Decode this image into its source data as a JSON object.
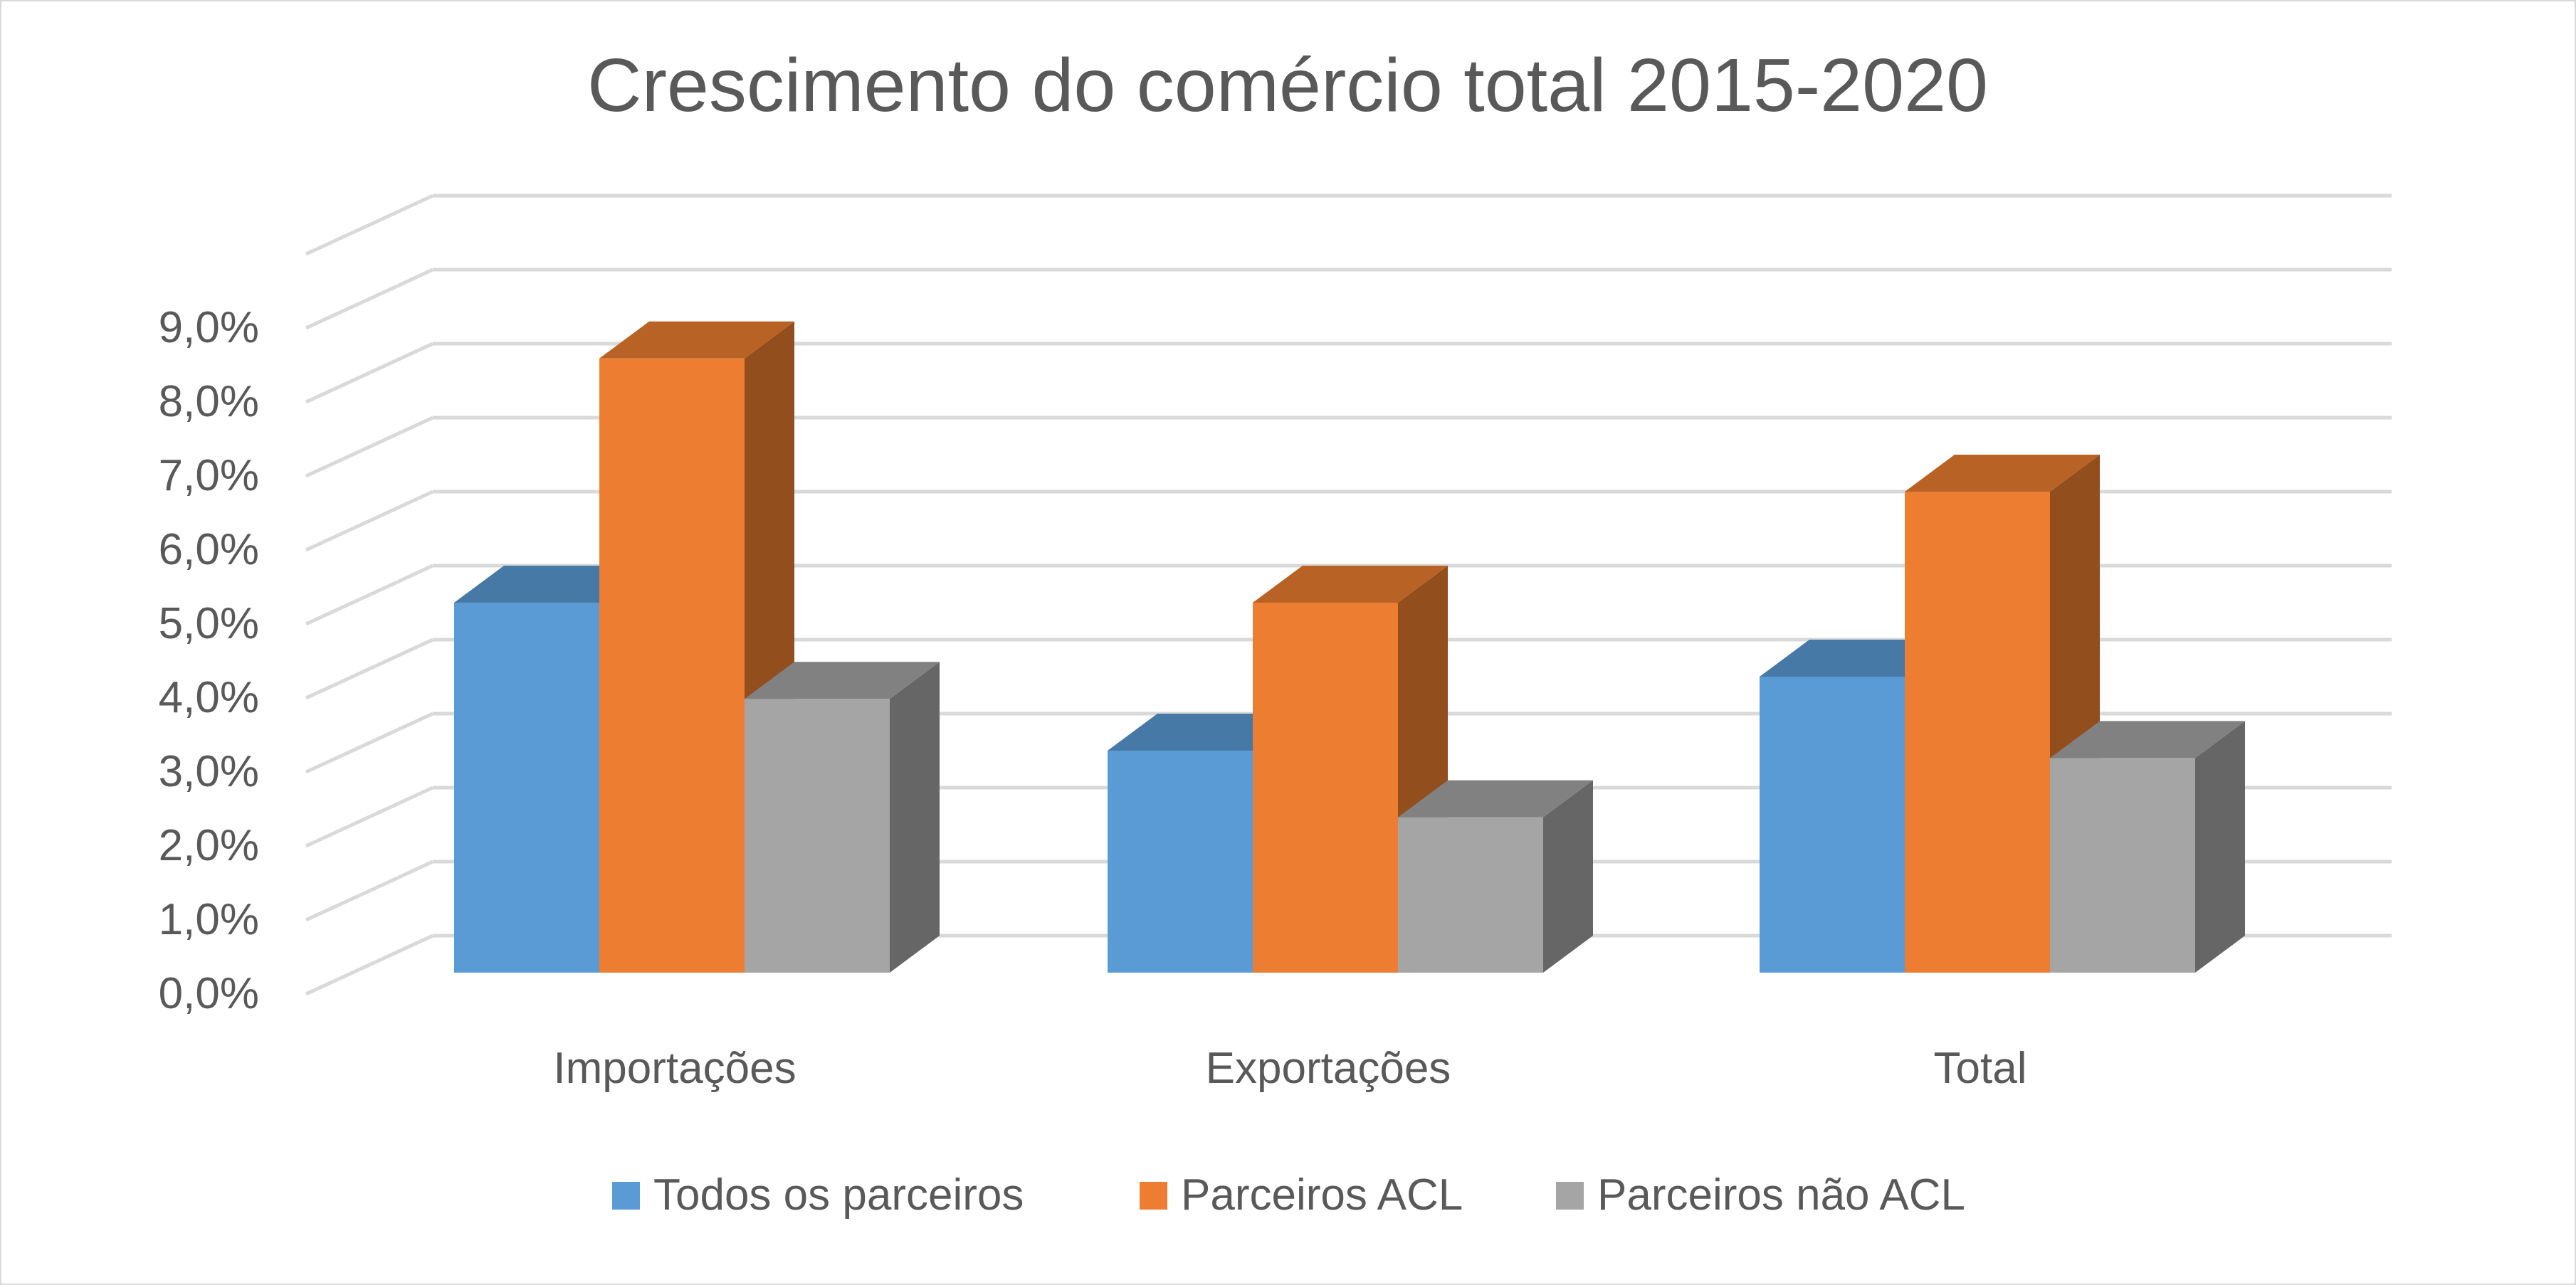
{
  "chart_data": {
    "type": "bar",
    "title": "Crescimento do comércio total 2015-2020",
    "categories": [
      "Importações",
      "Exportações",
      "Total"
    ],
    "series": [
      {
        "name": "Todos os parceiros",
        "values": [
          5.0,
          3.0,
          4.0
        ],
        "color": "#5b9bd5"
      },
      {
        "name": "Parceiros ACL",
        "values": [
          8.3,
          5.0,
          6.5
        ],
        "color": "#ed7d31"
      },
      {
        "name": "Parceiros não ACL",
        "values": [
          3.7,
          2.1,
          2.9
        ],
        "color": "#a5a5a5"
      }
    ],
    "y_ticks": [
      "0,0%",
      "1,0%",
      "2,0%",
      "3,0%",
      "4,0%",
      "5,0%",
      "6,0%",
      "7,0%",
      "8,0%",
      "9,0%"
    ],
    "ylim": [
      0,
      10
    ],
    "value_format": "percent",
    "bar_style": "3d-clustered-column",
    "grid": true,
    "legend_position": "bottom"
  }
}
